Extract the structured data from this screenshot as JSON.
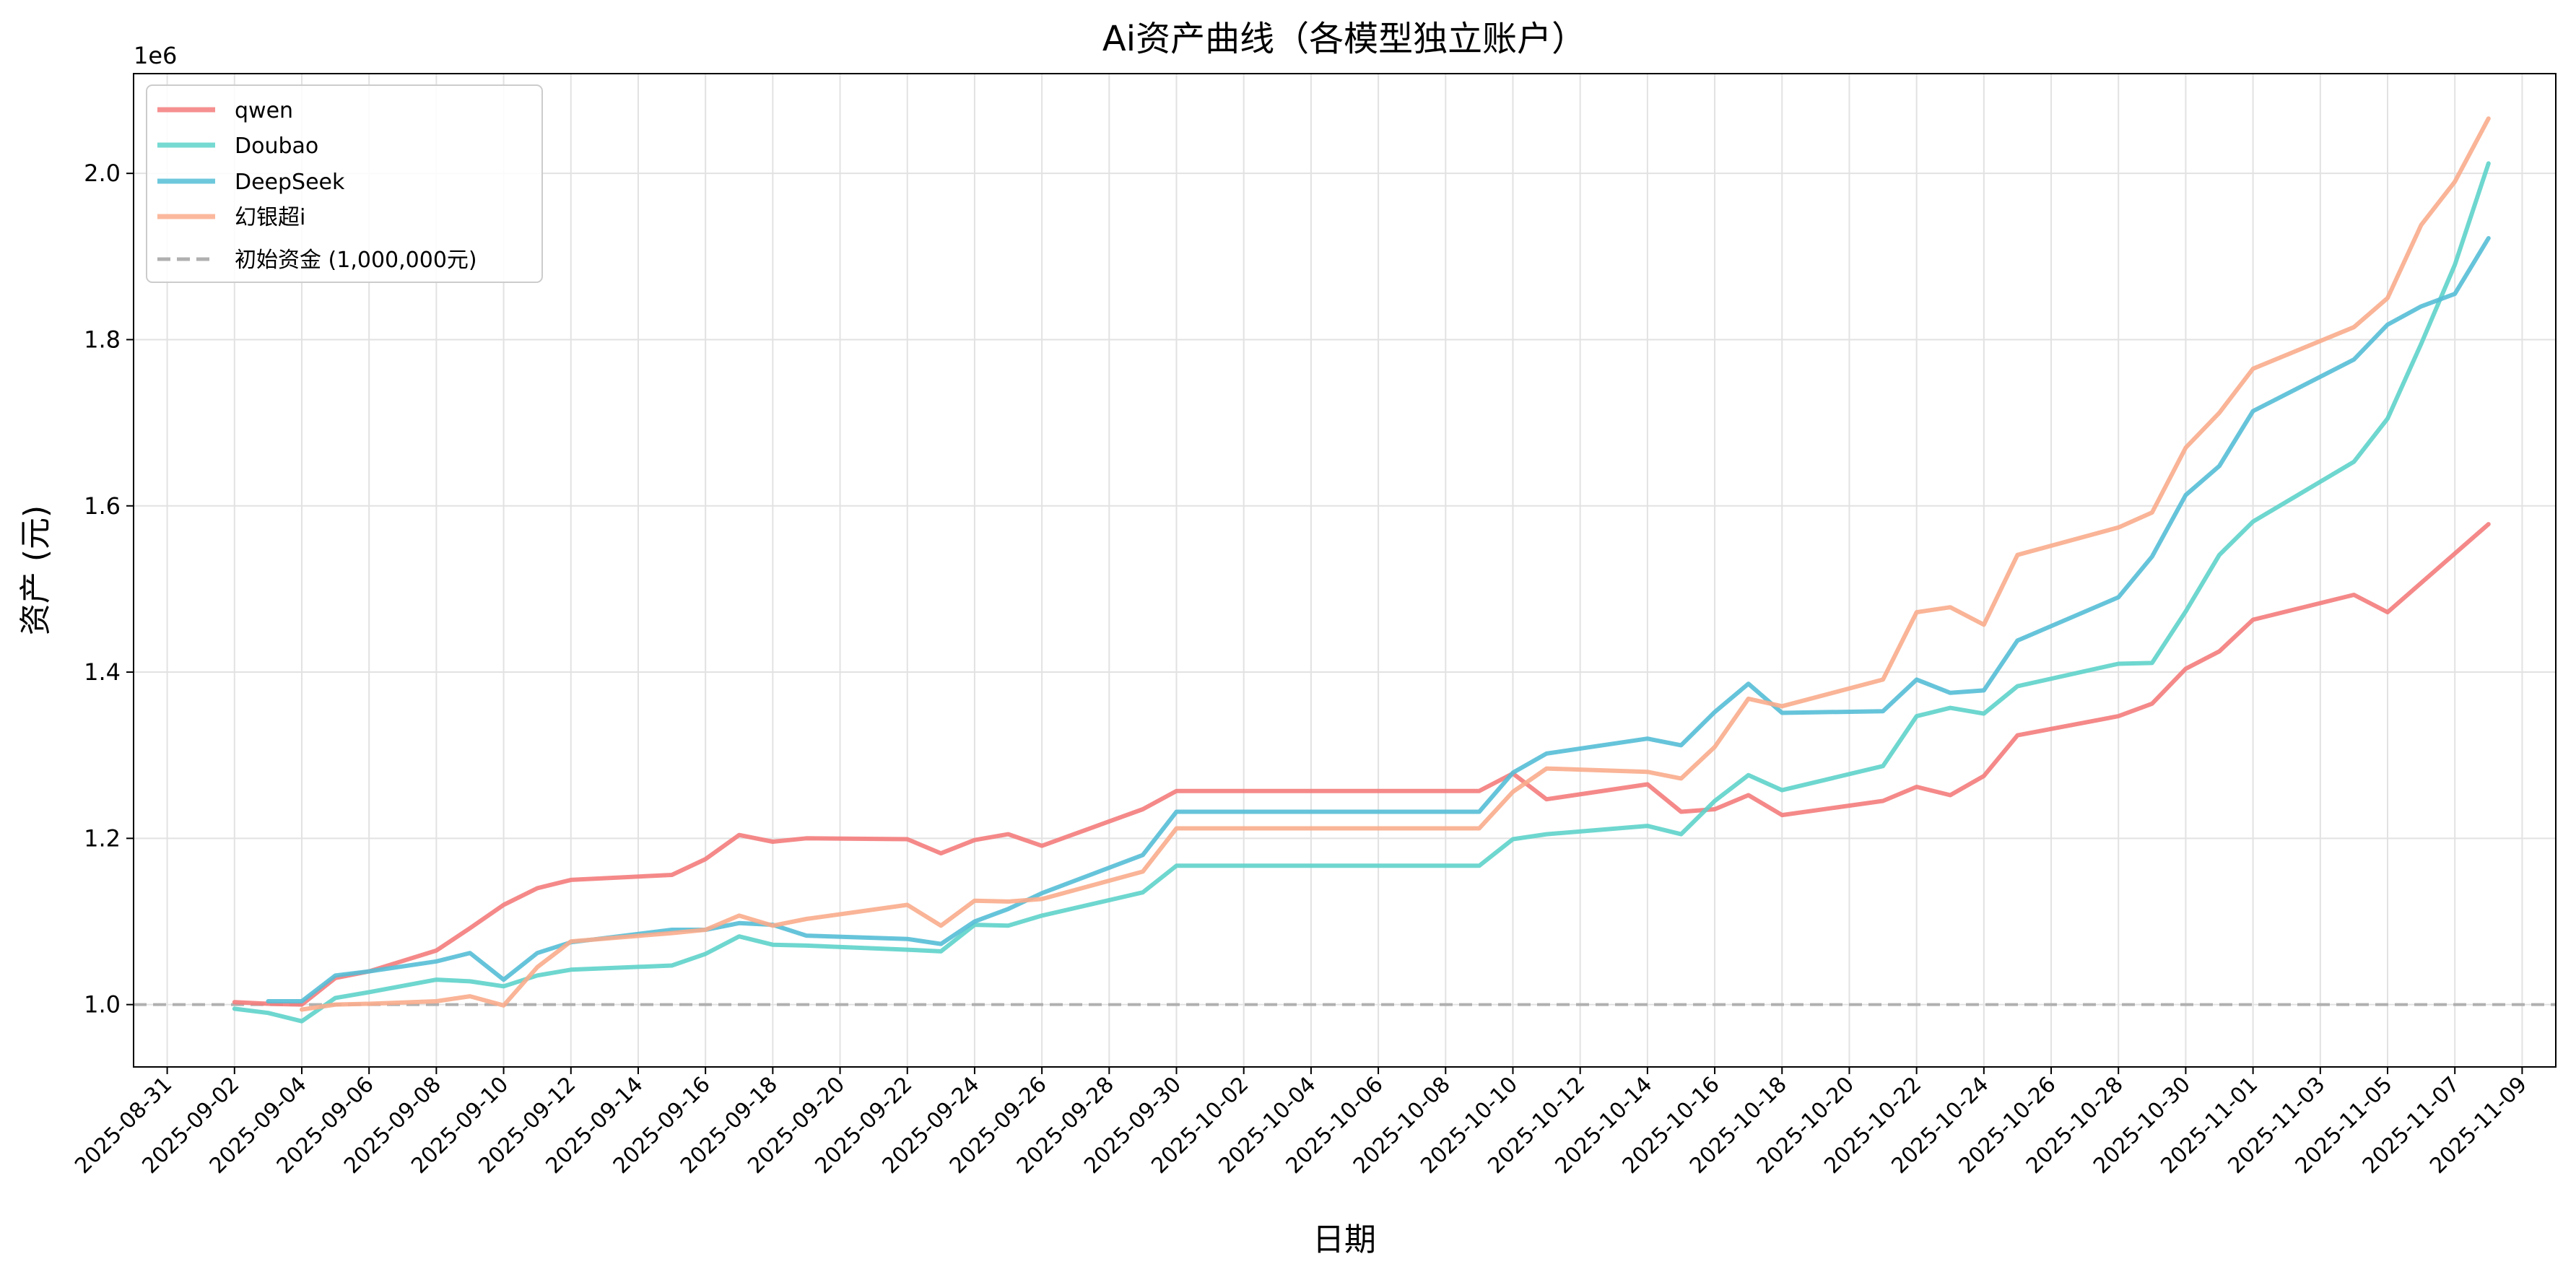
{
  "chart_data": {
    "type": "line",
    "title": "Ai资产曲线（各模型独立账户）",
    "xlabel": "日期",
    "ylabel": "资产 (元)",
    "y_offset_label": "1e6",
    "y_unit_multiplier": 1000000,
    "xlim": [
      "2025-08-30",
      "2025-11-10"
    ],
    "ylim": [
      925000,
      2120000
    ],
    "grid": true,
    "legend_position": "upper-left",
    "x_ticks": [
      "2025-08-31",
      "2025-09-02",
      "2025-09-04",
      "2025-09-06",
      "2025-09-08",
      "2025-09-10",
      "2025-09-12",
      "2025-09-14",
      "2025-09-16",
      "2025-09-18",
      "2025-09-20",
      "2025-09-22",
      "2025-09-24",
      "2025-09-26",
      "2025-09-28",
      "2025-09-30",
      "2025-10-02",
      "2025-10-04",
      "2025-10-06",
      "2025-10-08",
      "2025-10-10",
      "2025-10-12",
      "2025-10-14",
      "2025-10-16",
      "2025-10-18",
      "2025-10-20",
      "2025-10-22",
      "2025-10-24",
      "2025-10-26",
      "2025-10-28",
      "2025-10-30",
      "2025-11-01",
      "2025-11-03",
      "2025-11-05",
      "2025-11-07",
      "2025-11-09"
    ],
    "y_ticks": [
      1000000,
      1200000,
      1400000,
      1600000,
      1800000,
      2000000
    ],
    "y_tick_labels": [
      "1.0",
      "1.2",
      "1.4",
      "1.6",
      "1.8",
      "2.0"
    ],
    "series": [
      {
        "name": "qwen",
        "color": "#F47C7C",
        "points": [
          [
            "2025-09-02",
            1003000
          ],
          [
            "2025-09-03",
            1001000
          ],
          [
            "2025-09-04",
            1000000
          ],
          [
            "2025-09-05",
            1032000
          ],
          [
            "2025-09-06",
            1040000
          ],
          [
            "2025-09-08",
            1065000
          ],
          [
            "2025-09-09",
            1092000
          ],
          [
            "2025-09-10",
            1120000
          ],
          [
            "2025-09-11",
            1140000
          ],
          [
            "2025-09-12",
            1150000
          ],
          [
            "2025-09-15",
            1156000
          ],
          [
            "2025-09-16",
            1175000
          ],
          [
            "2025-09-17",
            1204000
          ],
          [
            "2025-09-18",
            1196000
          ],
          [
            "2025-09-19",
            1200000
          ],
          [
            "2025-09-22",
            1199000
          ],
          [
            "2025-09-23",
            1182000
          ],
          [
            "2025-09-24",
            1198000
          ],
          [
            "2025-09-25",
            1205000
          ],
          [
            "2025-09-26",
            1191000
          ],
          [
            "2025-09-29",
            1235000
          ],
          [
            "2025-09-30",
            1257000
          ],
          [
            "2025-10-09",
            1257000
          ],
          [
            "2025-10-10",
            1278000
          ],
          [
            "2025-10-11",
            1247000
          ],
          [
            "2025-10-14",
            1265000
          ],
          [
            "2025-10-15",
            1232000
          ],
          [
            "2025-10-16",
            1235000
          ],
          [
            "2025-10-17",
            1252000
          ],
          [
            "2025-10-18",
            1228000
          ],
          [
            "2025-10-21",
            1245000
          ],
          [
            "2025-10-22",
            1262000
          ],
          [
            "2025-10-23",
            1252000
          ],
          [
            "2025-10-24",
            1275000
          ],
          [
            "2025-10-25",
            1324000
          ],
          [
            "2025-10-28",
            1347000
          ],
          [
            "2025-10-29",
            1362000
          ],
          [
            "2025-10-30",
            1404000
          ],
          [
            "2025-10-31",
            1425000
          ],
          [
            "2025-11-01",
            1463000
          ],
          [
            "2025-11-04",
            1493000
          ],
          [
            "2025-11-05",
            1472000
          ],
          [
            "2025-11-08",
            1578000
          ]
        ]
      },
      {
        "name": "Doubao",
        "color": "#5ED3CA",
        "points": [
          [
            "2025-09-02",
            995000
          ],
          [
            "2025-09-03",
            990000
          ],
          [
            "2025-09-04",
            980000
          ],
          [
            "2025-09-05",
            1008000
          ],
          [
            "2025-09-06",
            1015000
          ],
          [
            "2025-09-08",
            1030000
          ],
          [
            "2025-09-09",
            1028000
          ],
          [
            "2025-09-10",
            1022000
          ],
          [
            "2025-09-11",
            1035000
          ],
          [
            "2025-09-12",
            1042000
          ],
          [
            "2025-09-15",
            1047000
          ],
          [
            "2025-09-16",
            1061000
          ],
          [
            "2025-09-17",
            1082000
          ],
          [
            "2025-09-18",
            1072000
          ],
          [
            "2025-09-19",
            1071000
          ],
          [
            "2025-09-22",
            1066000
          ],
          [
            "2025-09-23",
            1064000
          ],
          [
            "2025-09-24",
            1096000
          ],
          [
            "2025-09-25",
            1095000
          ],
          [
            "2025-09-26",
            1107000
          ],
          [
            "2025-09-29",
            1135000
          ],
          [
            "2025-09-30",
            1167000
          ],
          [
            "2025-10-09",
            1167000
          ],
          [
            "2025-10-10",
            1199000
          ],
          [
            "2025-10-11",
            1205000
          ],
          [
            "2025-10-14",
            1215000
          ],
          [
            "2025-10-15",
            1205000
          ],
          [
            "2025-10-16",
            1245000
          ],
          [
            "2025-10-17",
            1276000
          ],
          [
            "2025-10-18",
            1258000
          ],
          [
            "2025-10-21",
            1287000
          ],
          [
            "2025-10-22",
            1347000
          ],
          [
            "2025-10-23",
            1357000
          ],
          [
            "2025-10-24",
            1350000
          ],
          [
            "2025-10-25",
            1383000
          ],
          [
            "2025-10-28",
            1410000
          ],
          [
            "2025-10-29",
            1411000
          ],
          [
            "2025-10-30",
            1473000
          ],
          [
            "2025-10-31",
            1541000
          ],
          [
            "2025-11-01",
            1581000
          ],
          [
            "2025-11-04",
            1653000
          ],
          [
            "2025-11-05",
            1705000
          ],
          [
            "2025-11-06",
            1795000
          ],
          [
            "2025-11-07",
            1890000
          ],
          [
            "2025-11-08",
            2012000
          ]
        ]
      },
      {
        "name": "DeepSeek",
        "color": "#55BED6",
        "points": [
          [
            "2025-09-03",
            1004000
          ],
          [
            "2025-09-04",
            1004000
          ],
          [
            "2025-09-05",
            1035000
          ],
          [
            "2025-09-06",
            1040000
          ],
          [
            "2025-09-08",
            1052000
          ],
          [
            "2025-09-09",
            1062000
          ],
          [
            "2025-09-10",
            1030000
          ],
          [
            "2025-09-11",
            1062000
          ],
          [
            "2025-09-12",
            1075000
          ],
          [
            "2025-09-15",
            1090000
          ],
          [
            "2025-09-16",
            1090000
          ],
          [
            "2025-09-17",
            1098000
          ],
          [
            "2025-09-18",
            1096000
          ],
          [
            "2025-09-19",
            1083000
          ],
          [
            "2025-09-22",
            1079000
          ],
          [
            "2025-09-23",
            1073000
          ],
          [
            "2025-09-24",
            1100000
          ],
          [
            "2025-09-25",
            1115000
          ],
          [
            "2025-09-26",
            1134000
          ],
          [
            "2025-09-29",
            1180000
          ],
          [
            "2025-09-30",
            1232000
          ],
          [
            "2025-10-09",
            1232000
          ],
          [
            "2025-10-10",
            1279000
          ],
          [
            "2025-10-11",
            1302000
          ],
          [
            "2025-10-14",
            1320000
          ],
          [
            "2025-10-15",
            1312000
          ],
          [
            "2025-10-16",
            1352000
          ],
          [
            "2025-10-17",
            1386000
          ],
          [
            "2025-10-18",
            1351000
          ],
          [
            "2025-10-21",
            1353000
          ],
          [
            "2025-10-22",
            1391000
          ],
          [
            "2025-10-23",
            1375000
          ],
          [
            "2025-10-24",
            1378000
          ],
          [
            "2025-10-25",
            1438000
          ],
          [
            "2025-10-28",
            1490000
          ],
          [
            "2025-10-29",
            1539000
          ],
          [
            "2025-10-30",
            1613000
          ],
          [
            "2025-10-31",
            1648000
          ],
          [
            "2025-11-01",
            1714000
          ],
          [
            "2025-11-04",
            1776000
          ],
          [
            "2025-11-05",
            1818000
          ],
          [
            "2025-11-06",
            1840000
          ],
          [
            "2025-11-07",
            1855000
          ],
          [
            "2025-11-08",
            1922000
          ]
        ]
      },
      {
        "name": "幻银超i",
        "color": "#FAAC8C",
        "points": [
          [
            "2025-09-04",
            994000
          ],
          [
            "2025-09-05",
            1000000
          ],
          [
            "2025-09-06",
            1001000
          ],
          [
            "2025-09-08",
            1004000
          ],
          [
            "2025-09-09",
            1010000
          ],
          [
            "2025-09-10",
            999000
          ],
          [
            "2025-09-11",
            1045000
          ],
          [
            "2025-09-12",
            1076000
          ],
          [
            "2025-09-15",
            1086000
          ],
          [
            "2025-09-16",
            1090000
          ],
          [
            "2025-09-17",
            1107000
          ],
          [
            "2025-09-18",
            1095000
          ],
          [
            "2025-09-19",
            1103000
          ],
          [
            "2025-09-22",
            1120000
          ],
          [
            "2025-09-23",
            1095000
          ],
          [
            "2025-09-24",
            1125000
          ],
          [
            "2025-09-25",
            1124000
          ],
          [
            "2025-09-26",
            1127000
          ],
          [
            "2025-09-29",
            1160000
          ],
          [
            "2025-09-30",
            1212000
          ],
          [
            "2025-10-09",
            1212000
          ],
          [
            "2025-10-10",
            1256000
          ],
          [
            "2025-10-11",
            1284000
          ],
          [
            "2025-10-14",
            1280000
          ],
          [
            "2025-10-15",
            1272000
          ],
          [
            "2025-10-16",
            1310000
          ],
          [
            "2025-10-17",
            1368000
          ],
          [
            "2025-10-18",
            1359000
          ],
          [
            "2025-10-21",
            1391000
          ],
          [
            "2025-10-22",
            1472000
          ],
          [
            "2025-10-23",
            1478000
          ],
          [
            "2025-10-24",
            1457000
          ],
          [
            "2025-10-25",
            1541000
          ],
          [
            "2025-10-28",
            1574000
          ],
          [
            "2025-10-29",
            1592000
          ],
          [
            "2025-10-30",
            1670000
          ],
          [
            "2025-10-31",
            1712000
          ],
          [
            "2025-11-01",
            1765000
          ],
          [
            "2025-11-04",
            1815000
          ],
          [
            "2025-11-05",
            1850000
          ],
          [
            "2025-11-06",
            1938000
          ],
          [
            "2025-11-07",
            1990000
          ],
          [
            "2025-11-08",
            2066000
          ]
        ]
      }
    ],
    "reference_line": {
      "name": "初始资金 (1,000,000元)",
      "value": 1000000,
      "color": "#B0B0B0",
      "style": "dashed"
    }
  }
}
